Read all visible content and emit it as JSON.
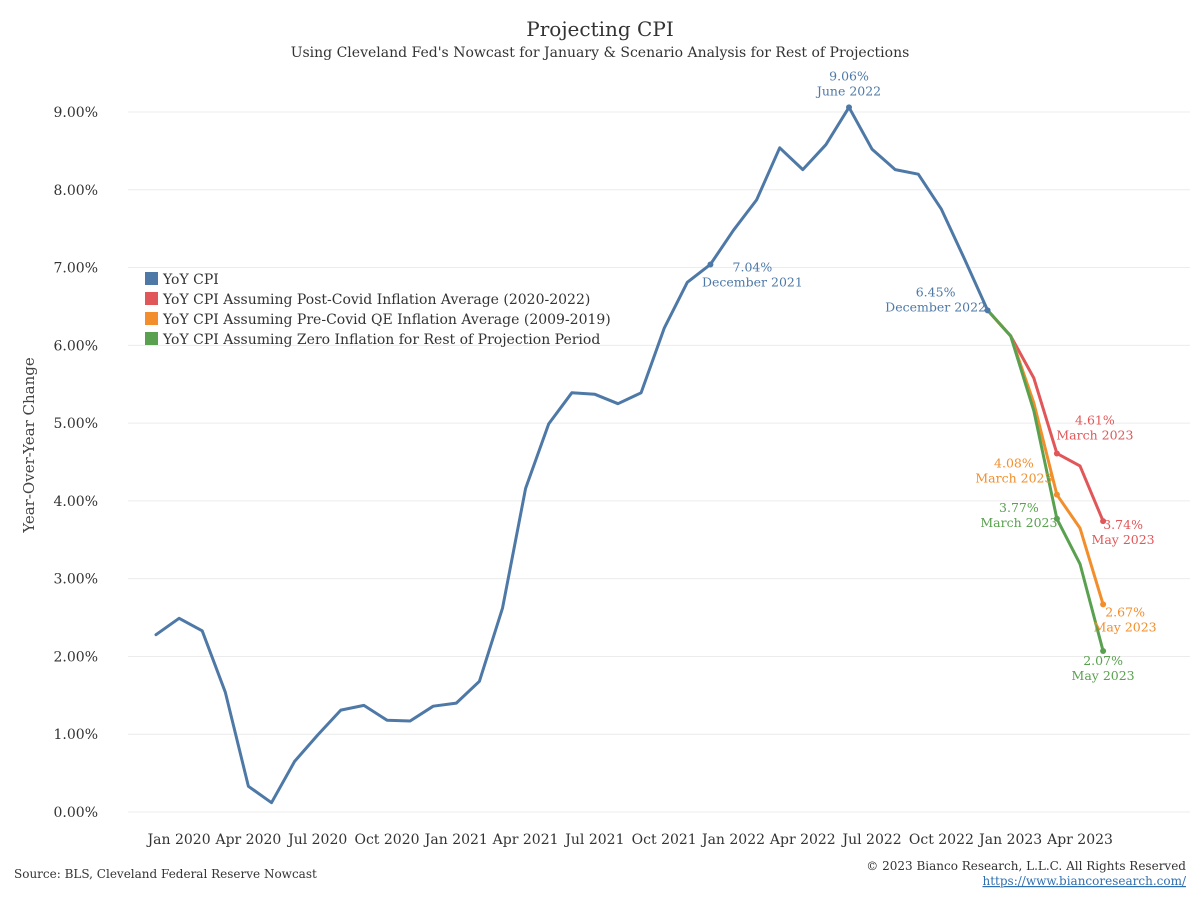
{
  "chart_data": {
    "type": "line",
    "title": "Projecting CPI",
    "subtitle": "Using Cleveland Fed's Nowcast for January & Scenario Analysis for Rest of Projections",
    "ylabel": "Year-Over-Year Change",
    "xlabel": "",
    "ylim": [
      0,
      9.5
    ],
    "yticks": [
      0,
      1,
      2,
      3,
      4,
      5,
      6,
      7,
      8,
      9
    ],
    "ytick_labels": [
      "0.00%",
      "1.00%",
      "2.00%",
      "3.00%",
      "4.00%",
      "5.00%",
      "6.00%",
      "7.00%",
      "8.00%",
      "9.00%"
    ],
    "xticks": [
      {
        "label": "Jan 2020",
        "date": "2020-01"
      },
      {
        "label": "Apr 2020",
        "date": "2020-04"
      },
      {
        "label": "Jul 2020",
        "date": "2020-07"
      },
      {
        "label": "Oct 2020",
        "date": "2020-10"
      },
      {
        "label": "Jan 2021",
        "date": "2021-01"
      },
      {
        "label": "Apr 2021",
        "date": "2021-04"
      },
      {
        "label": "Jul 2021",
        "date": "2021-07"
      },
      {
        "label": "Oct 2021",
        "date": "2021-10"
      },
      {
        "label": "Jan 2022",
        "date": "2022-01"
      },
      {
        "label": "Apr 2022",
        "date": "2022-04"
      },
      {
        "label": "Jul 2022",
        "date": "2022-07"
      },
      {
        "label": "Oct 2022",
        "date": "2022-10"
      },
      {
        "label": "Jan 2023",
        "date": "2023-01"
      },
      {
        "label": "Apr 2023",
        "date": "2023-04"
      }
    ],
    "grid": true,
    "legend_position": "upper-left",
    "series": [
      {
        "name": "YoY CPI",
        "color": "#4e79a7",
        "x": [
          "2019-12",
          "2020-01",
          "2020-02",
          "2020-03",
          "2020-04",
          "2020-05",
          "2020-06",
          "2020-07",
          "2020-08",
          "2020-09",
          "2020-10",
          "2020-11",
          "2020-12",
          "2021-01",
          "2021-02",
          "2021-03",
          "2021-04",
          "2021-05",
          "2021-06",
          "2021-07",
          "2021-08",
          "2021-09",
          "2021-10",
          "2021-11",
          "2021-12",
          "2022-01",
          "2022-02",
          "2022-03",
          "2022-04",
          "2022-05",
          "2022-06",
          "2022-07",
          "2022-08",
          "2022-09",
          "2022-10",
          "2022-11",
          "2022-12"
        ],
        "values": [
          2.28,
          2.49,
          2.33,
          1.54,
          0.33,
          0.12,
          0.65,
          0.99,
          1.31,
          1.37,
          1.18,
          1.17,
          1.36,
          1.4,
          1.68,
          2.62,
          4.16,
          4.99,
          5.39,
          5.37,
          5.25,
          5.39,
          6.22,
          6.81,
          7.04,
          7.48,
          7.87,
          8.54,
          8.26,
          8.58,
          9.06,
          8.52,
          8.26,
          8.2,
          7.75,
          7.11,
          6.45
        ]
      },
      {
        "name": "YoY CPI Assuming Post-Covid Inflation Average (2020-2022)",
        "color": "#e15759",
        "x": [
          "2022-12",
          "2023-01",
          "2023-02",
          "2023-03",
          "2023-04",
          "2023-05"
        ],
        "values": [
          6.45,
          6.12,
          5.58,
          4.61,
          4.45,
          3.74
        ]
      },
      {
        "name": "YoY CPI Assuming Pre-Covid QE Inflation Average (2009-2019)",
        "color": "#f28e2b",
        "x": [
          "2022-12",
          "2023-01",
          "2023-02",
          "2023-03",
          "2023-04",
          "2023-05"
        ],
        "values": [
          6.45,
          6.12,
          5.26,
          4.08,
          3.65,
          2.67
        ]
      },
      {
        "name": "YoY CPI Assuming Zero Inflation for Rest of Projection Period",
        "color": "#59a14f",
        "x": [
          "2022-12",
          "2023-01",
          "2023-02",
          "2023-03",
          "2023-04",
          "2023-05"
        ],
        "values": [
          6.45,
          6.12,
          5.16,
          3.77,
          3.19,
          2.07
        ]
      }
    ],
    "annotations": [
      {
        "series": 0,
        "date": "2021-12",
        "value": 7.04,
        "value_label": "7.04%",
        "date_label": "December 2021"
      },
      {
        "series": 0,
        "date": "2022-06",
        "value": 9.06,
        "value_label": "9.06%",
        "date_label": "June 2022"
      },
      {
        "series": 0,
        "date": "2022-12",
        "value": 6.45,
        "value_label": "6.45%",
        "date_label": "December 2022"
      },
      {
        "series": 1,
        "date": "2023-03",
        "value": 4.61,
        "value_label": "4.61%",
        "date_label": "March 2023"
      },
      {
        "series": 1,
        "date": "2023-05",
        "value": 3.74,
        "value_label": "3.74%",
        "date_label": "May 2023"
      },
      {
        "series": 2,
        "date": "2023-03",
        "value": 4.08,
        "value_label": "4.08%",
        "date_label": "March 2023"
      },
      {
        "series": 2,
        "date": "2023-05",
        "value": 2.67,
        "value_label": "2.67%",
        "date_label": "May 2023"
      },
      {
        "series": 3,
        "date": "2023-03",
        "value": 3.77,
        "value_label": "3.77%",
        "date_label": "March 2023"
      },
      {
        "series": 3,
        "date": "2023-05",
        "value": 2.07,
        "value_label": "2.07%",
        "date_label": "May 2023"
      }
    ]
  },
  "footer": {
    "source": "Source: BLS, Cleveland Federal Reserve Nowcast",
    "copyright": "© 2023 Bianco Research, L.L.C. All Rights Reserved",
    "url": "https://www.biancoresearch.com/"
  }
}
